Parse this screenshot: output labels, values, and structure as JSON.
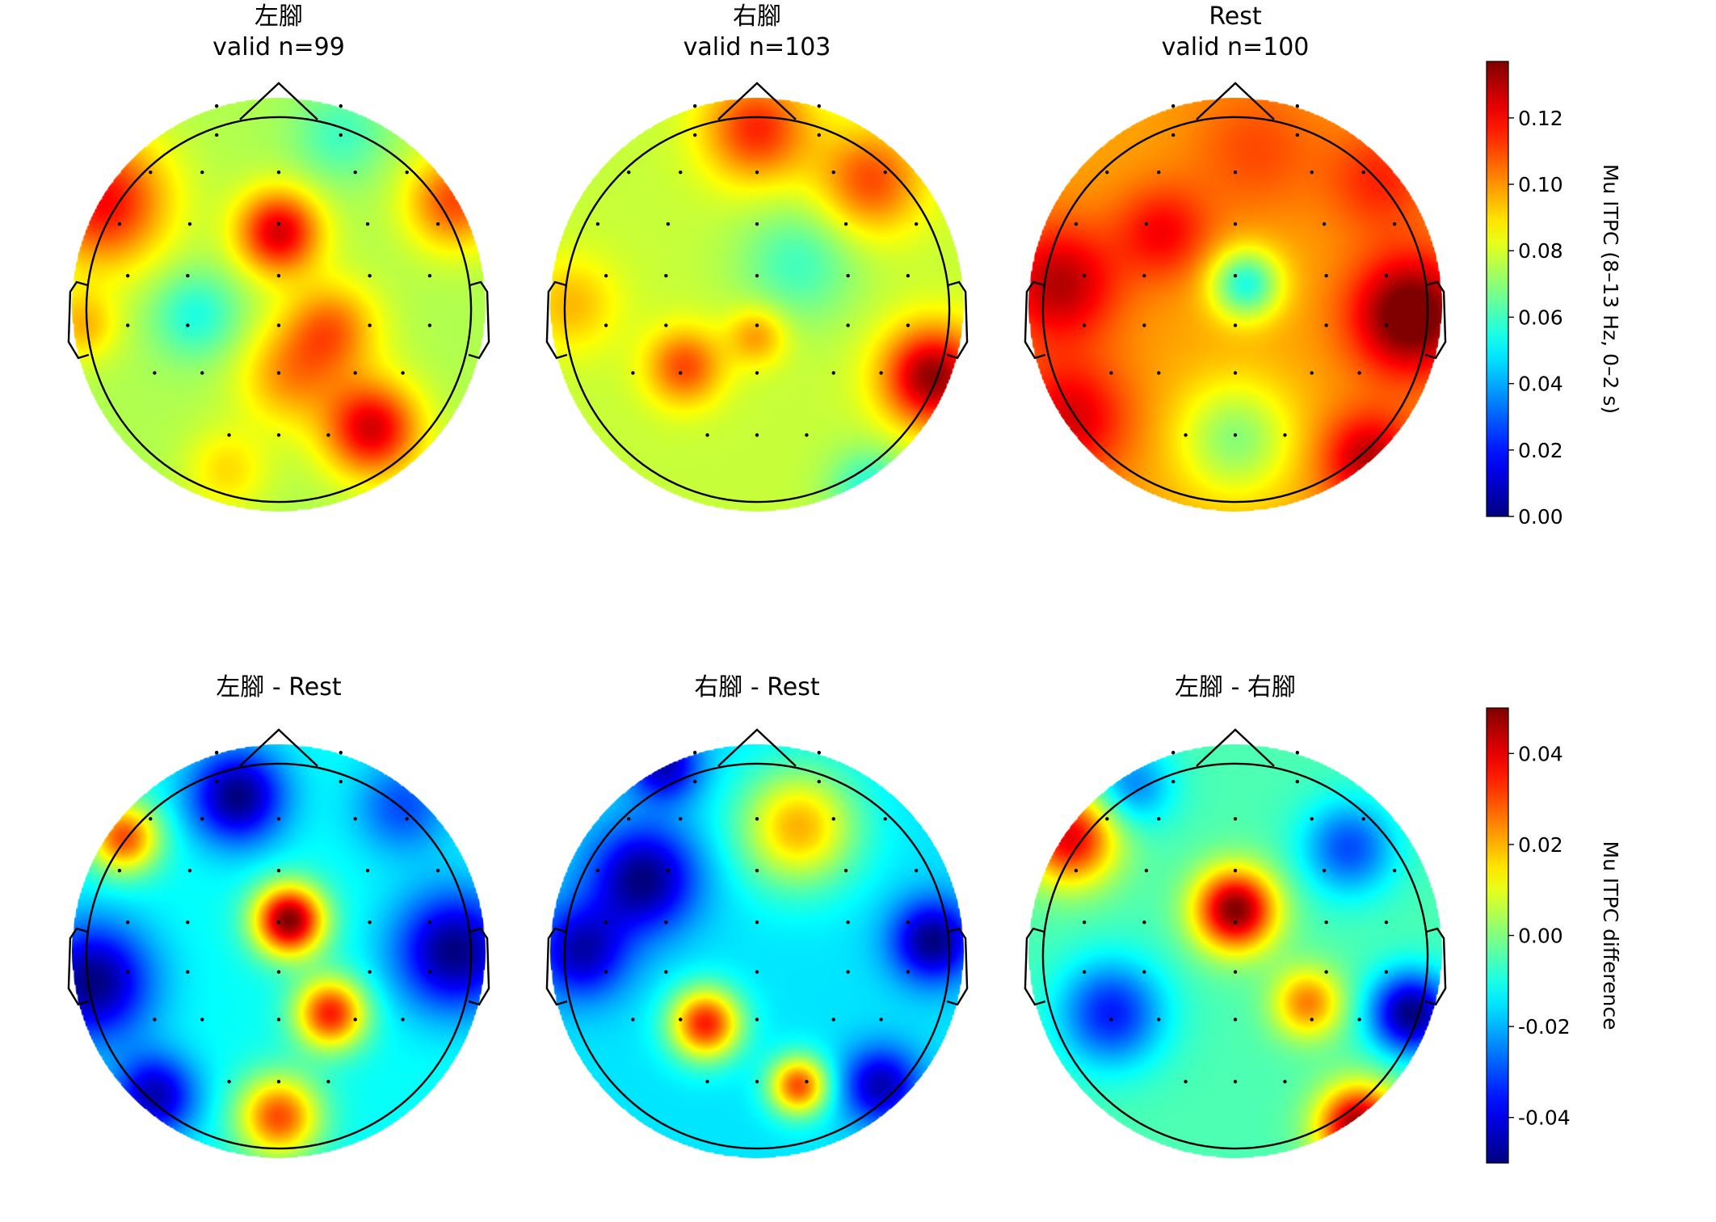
{
  "chart_data": {
    "type": "heatmap",
    "subtype": "eeg-topomap",
    "colormap": "jet",
    "colors": {
      "colormap_stops": [
        "#00007f",
        "#0000ff",
        "#007fff",
        "#00ffff",
        "#7fff7f",
        "#ffff00",
        "#ff7f00",
        "#ff0000",
        "#7f0000"
      ],
      "outline": "#000000",
      "sensor_dot": "#000000"
    },
    "panels": [
      {
        "id": "left-foot",
        "title": [
          "左腳",
          "valid n=99"
        ],
        "colorbar": "itpc",
        "blobs": [
          {
            "c": [
              0,
              0.35
            ],
            "v": 0.125,
            "s": 0.14
          },
          {
            "c": [
              -0.85,
              0.5
            ],
            "v": 0.12,
            "s": 0.22
          },
          {
            "c": [
              0.25,
              -0.12
            ],
            "v": 0.105,
            "s": 0.16
          },
          {
            "c": [
              0.45,
              -0.6
            ],
            "v": 0.125,
            "s": 0.16
          },
          {
            "c": [
              0.05,
              -0.35
            ],
            "v": 0.098,
            "s": 0.17
          },
          {
            "c": [
              -0.25,
              -0.8
            ],
            "v": 0.09,
            "s": 0.14
          },
          {
            "c": [
              0.85,
              0.5
            ],
            "v": 0.11,
            "s": 0.16
          },
          {
            "c": [
              -0.4,
              -0.05
            ],
            "v": 0.055,
            "s": 0.15
          },
          {
            "c": [
              0.3,
              0.82
            ],
            "v": 0.06,
            "s": 0.16
          },
          {
            "c": [
              -0.95,
              -0.1
            ],
            "v": 0.095,
            "s": 0.12
          }
        ],
        "base": 0.075
      },
      {
        "id": "right-foot",
        "title": [
          "右腳",
          "valid n=103"
        ],
        "colorbar": "itpc",
        "blobs": [
          {
            "c": [
              0.85,
              -0.35
            ],
            "v": 0.135,
            "s": 0.17
          },
          {
            "c": [
              -0.35,
              -0.3
            ],
            "v": 0.11,
            "s": 0.13
          },
          {
            "c": [
              0.0,
              -0.15
            ],
            "v": 0.1,
            "s": 0.1
          },
          {
            "c": [
              0.0,
              0.85
            ],
            "v": 0.115,
            "s": 0.18
          },
          {
            "c": [
              0.55,
              0.6
            ],
            "v": 0.11,
            "s": 0.18
          },
          {
            "c": [
              -0.9,
              0.0
            ],
            "v": 0.095,
            "s": 0.16
          },
          {
            "c": [
              0.2,
              0.2
            ],
            "v": 0.06,
            "s": 0.2
          },
          {
            "c": [
              0.55,
              -0.9
            ],
            "v": 0.055,
            "s": 0.14
          }
        ],
        "base": 0.078
      },
      {
        "id": "rest",
        "title": [
          "Rest",
          "valid n=100"
        ],
        "colorbar": "itpc",
        "blobs": [
          {
            "c": [
              0.85,
              -0.05
            ],
            "v": 0.145,
            "s": 0.2
          },
          {
            "c": [
              0.65,
              -0.75
            ],
            "v": 0.13,
            "s": 0.16
          },
          {
            "c": [
              -0.85,
              0.1
            ],
            "v": 0.13,
            "s": 0.2
          },
          {
            "c": [
              -0.8,
              -0.55
            ],
            "v": 0.125,
            "s": 0.2
          },
          {
            "c": [
              -0.35,
              0.35
            ],
            "v": 0.12,
            "s": 0.16
          },
          {
            "c": [
              0.1,
              0.75
            ],
            "v": 0.11,
            "s": 0.22
          },
          {
            "c": [
              0.05,
              0.1
            ],
            "v": 0.055,
            "s": 0.12
          },
          {
            "c": [
              0.0,
              -0.65
            ],
            "v": 0.07,
            "s": 0.2
          },
          {
            "c": [
              0.7,
              0.6
            ],
            "v": 0.115,
            "s": 0.18
          }
        ],
        "base": 0.098
      },
      {
        "id": "left-foot-minus-rest",
        "title": [
          "左腳 - Rest"
        ],
        "colorbar": "diff",
        "blobs": [
          {
            "c": [
              0.05,
              0.15
            ],
            "v": 0.05,
            "s": 0.12
          },
          {
            "c": [
              0.25,
              -0.3
            ],
            "v": 0.035,
            "s": 0.12
          },
          {
            "c": [
              0.0,
              -0.8
            ],
            "v": 0.03,
            "s": 0.14
          },
          {
            "c": [
              -0.9,
              -0.15
            ],
            "v": -0.05,
            "s": 0.2
          },
          {
            "c": [
              0.85,
              0.0
            ],
            "v": -0.05,
            "s": 0.2
          },
          {
            "c": [
              -0.2,
              0.75
            ],
            "v": -0.05,
            "s": 0.16
          },
          {
            "c": [
              -0.6,
              -0.7
            ],
            "v": -0.045,
            "s": 0.14
          },
          {
            "c": [
              0.6,
              0.7
            ],
            "v": -0.03,
            "s": 0.16
          },
          {
            "c": [
              -0.75,
              0.55
            ],
            "v": 0.03,
            "s": 0.12
          }
        ],
        "base": -0.012
      },
      {
        "id": "right-foot-minus-rest",
        "title": [
          "右腳 - Rest"
        ],
        "colorbar": "diff",
        "blobs": [
          {
            "c": [
              -0.25,
              -0.35
            ],
            "v": 0.035,
            "s": 0.12
          },
          {
            "c": [
              0.2,
              -0.65
            ],
            "v": 0.03,
            "s": 0.1
          },
          {
            "c": [
              0.2,
              0.6
            ],
            "v": 0.02,
            "s": 0.2
          },
          {
            "c": [
              0.85,
              0.05
            ],
            "v": -0.05,
            "s": 0.14
          },
          {
            "c": [
              0.6,
              -0.65
            ],
            "v": -0.045,
            "s": 0.13
          },
          {
            "c": [
              -0.55,
              0.35
            ],
            "v": -0.05,
            "s": 0.18
          },
          {
            "c": [
              -0.85,
              0.0
            ],
            "v": -0.045,
            "s": 0.16
          },
          {
            "c": [
              -0.45,
              0.9
            ],
            "v": -0.045,
            "s": 0.12
          }
        ],
        "base": -0.015
      },
      {
        "id": "left-minus-right",
        "title": [
          "左腳 - 右腳"
        ],
        "colorbar": "diff",
        "blobs": [
          {
            "c": [
              0.0,
              0.2
            ],
            "v": 0.05,
            "s": 0.14
          },
          {
            "c": [
              0.6,
              -0.85
            ],
            "v": 0.05,
            "s": 0.14
          },
          {
            "c": [
              -0.8,
              0.55
            ],
            "v": 0.04,
            "s": 0.16
          },
          {
            "c": [
              0.35,
              -0.25
            ],
            "v": 0.025,
            "s": 0.12
          },
          {
            "c": [
              0.85,
              -0.3
            ],
            "v": -0.05,
            "s": 0.14
          },
          {
            "c": [
              -0.6,
              -0.3
            ],
            "v": -0.035,
            "s": 0.18
          },
          {
            "c": [
              0.55,
              0.5
            ],
            "v": -0.03,
            "s": 0.16
          },
          {
            "c": [
              -0.5,
              0.8
            ],
            "v": -0.025,
            "s": 0.14
          }
        ],
        "base": -0.005
      }
    ],
    "colorbars": {
      "itpc": {
        "label": "Mu ITPC (8–13 Hz, 0–2 s)",
        "range": [
          0,
          0.137
        ],
        "ticks": [
          0.0,
          0.02,
          0.04,
          0.06,
          0.08,
          0.1,
          0.12
        ],
        "tick_labels": [
          "0.00",
          "0.02",
          "0.04",
          "0.06",
          "0.08",
          "0.10",
          "0.12"
        ]
      },
      "diff": {
        "label": "Mu ITPC difference",
        "range": [
          -0.05,
          0.05
        ],
        "ticks": [
          -0.04,
          -0.02,
          0.0,
          0.02,
          0.04
        ],
        "tick_labels": [
          "-0.04",
          "-0.02",
          "0.00",
          "0.02",
          "0.04"
        ]
      }
    }
  }
}
